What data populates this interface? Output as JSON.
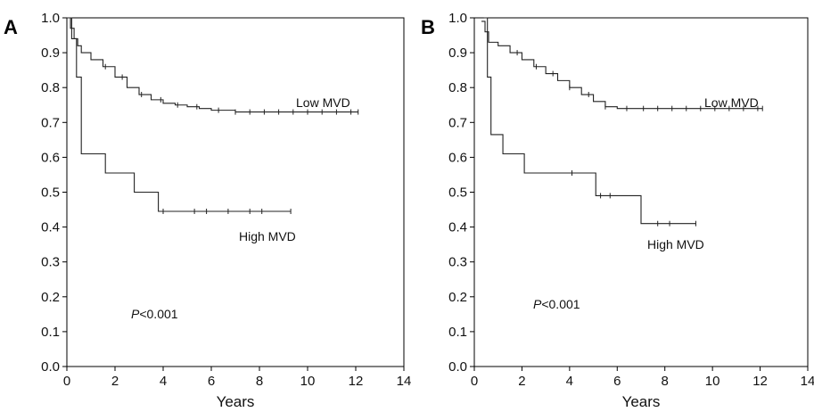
{
  "chart_data": [
    {
      "type": "line",
      "panel_letter": "A",
      "xlabel": "Years",
      "ylabel": "",
      "xlim": [
        0,
        14
      ],
      "ylim": [
        0.0,
        1.0
      ],
      "xticks": [
        "0",
        "2",
        "4",
        "6",
        "8",
        "10",
        "12",
        "14"
      ],
      "yticks": [
        "0.0",
        "0.1",
        "0.2",
        "0.3",
        "0.4",
        "0.5",
        "0.6",
        "0.7",
        "0.8",
        "0.9",
        "1.0"
      ],
      "grid": false,
      "p_value": {
        "prefix": "P",
        "text": "<0.001"
      },
      "series": [
        {
          "name": "Low MVD",
          "step": true,
          "x": [
            0,
            0.15,
            0.3,
            0.45,
            0.6,
            1.0,
            1.5,
            2.0,
            2.5,
            3.0,
            3.5,
            4.0,
            4.5,
            5.0,
            5.5,
            6.0,
            7.0,
            8.0,
            9.0,
            10.0,
            11.0,
            12.1
          ],
          "y": [
            1.0,
            0.97,
            0.94,
            0.92,
            0.9,
            0.88,
            0.86,
            0.83,
            0.8,
            0.78,
            0.765,
            0.755,
            0.75,
            0.745,
            0.74,
            0.735,
            0.73,
            0.73,
            0.73,
            0.73,
            0.73,
            0.73
          ],
          "censor_x": [
            1.6,
            2.3,
            3.1,
            3.9,
            4.6,
            5.4,
            6.3,
            7.0,
            7.6,
            8.2,
            8.8,
            9.4,
            10.0,
            10.6,
            11.2,
            11.8,
            12.1
          ]
        },
        {
          "name": "High MVD",
          "step": true,
          "x": [
            0,
            0.2,
            0.4,
            0.6,
            1.6,
            2.8,
            3.8,
            9.3
          ],
          "y": [
            1.0,
            0.94,
            0.83,
            0.61,
            0.555,
            0.5,
            0.445,
            0.445
          ],
          "censor_x": [
            4.0,
            5.3,
            5.8,
            6.7,
            7.6,
            8.1,
            9.3
          ]
        }
      ]
    },
    {
      "type": "line",
      "panel_letter": "B",
      "xlabel": "Years",
      "ylabel": "",
      "xlim": [
        0,
        14
      ],
      "ylim": [
        0.0,
        1.0
      ],
      "xticks": [
        "0",
        "2",
        "4",
        "6",
        "8",
        "10",
        "12",
        "14"
      ],
      "yticks": [
        "0.0",
        "0.1",
        "0.2",
        "0.3",
        "0.4",
        "0.5",
        "0.6",
        "0.7",
        "0.8",
        "0.9",
        "1.0"
      ],
      "grid": false,
      "p_value": {
        "prefix": "P",
        "text": "<0.001"
      },
      "series": [
        {
          "name": "Low MVD",
          "step": true,
          "x": [
            0.3,
            0.45,
            0.6,
            1.0,
            1.5,
            2.0,
            2.5,
            3.0,
            3.5,
            4.0,
            4.5,
            5.0,
            5.5,
            6.0,
            7.0,
            8.0,
            9.0,
            10.0,
            11.0,
            12.1
          ],
          "y": [
            0.99,
            0.96,
            0.93,
            0.92,
            0.9,
            0.88,
            0.86,
            0.84,
            0.82,
            0.8,
            0.78,
            0.76,
            0.745,
            0.74,
            0.74,
            0.74,
            0.74,
            0.74,
            0.74,
            0.74
          ],
          "censor_x": [
            1.8,
            2.6,
            3.3,
            4.0,
            4.8,
            5.5,
            6.4,
            7.1,
            7.7,
            8.3,
            8.9,
            9.5,
            10.1,
            10.7,
            11.3,
            11.9,
            12.1
          ]
        },
        {
          "name": "High MVD",
          "step": true,
          "x": [
            0.4,
            0.55,
            0.7,
            1.2,
            2.1,
            5.1,
            7.0,
            9.3
          ],
          "y": [
            1.0,
            0.83,
            0.665,
            0.61,
            0.555,
            0.49,
            0.41,
            0.41
          ],
          "censor_x": [
            4.1,
            5.3,
            5.7,
            7.7,
            8.2,
            9.3
          ]
        }
      ]
    }
  ]
}
